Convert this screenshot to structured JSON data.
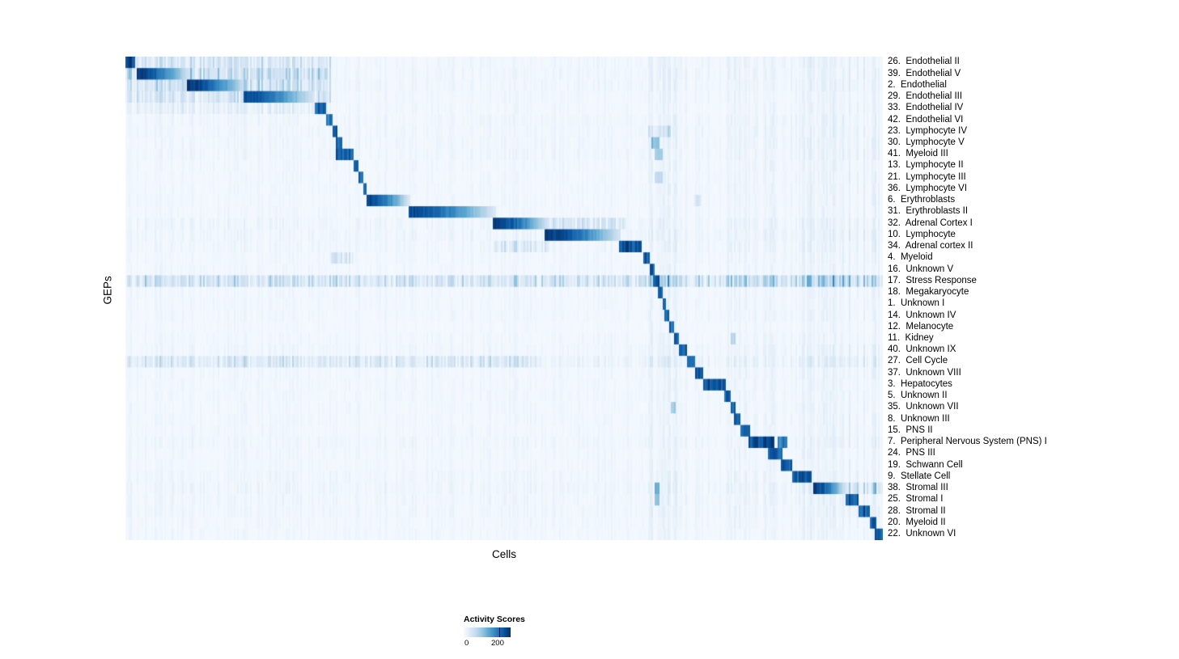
{
  "figure": {
    "xlabel": "Cells",
    "ylabel": "GEPs"
  },
  "chart_data": {
    "type": "heatmap",
    "title": "",
    "xlabel": "Cells",
    "ylabel": "GEPs",
    "legend_position": "bottom",
    "grid": false,
    "colorbar": {
      "label": "Activity Scores",
      "tick_labels": [
        "0",
        "200"
      ],
      "min": 0,
      "max": 250
    },
    "colormap": [
      "#f7fbff",
      "#deebf7",
      "#c6dbef",
      "#9ecae1",
      "#6baed6",
      "#4292c6",
      "#2171b5",
      "#08519c",
      "#08306b"
    ],
    "streak_regions": [
      [
        0.69,
        0.745,
        1.7
      ],
      [
        0.795,
        0.86,
        1.4
      ],
      [
        0.895,
        1.0,
        1.8
      ]
    ],
    "rows": [
      {
        "label": "26.  Endothelial II",
        "blocks": [
          [
            0.0,
            0.012,
            1.0
          ]
        ],
        "diffuse": [
          [
            0.0,
            0.27,
            0.26
          ],
          [
            0.27,
            1.0,
            0.06
          ]
        ]
      },
      {
        "label": "39.  Endothelial V",
        "blocks": [
          [
            0.014,
            0.085,
            0.97
          ]
        ],
        "diffuse": [
          [
            0.0,
            0.27,
            0.36
          ],
          [
            0.27,
            1.0,
            0.06
          ]
        ]
      },
      {
        "label": "2.  Endothelial",
        "blocks": [
          [
            0.08,
            0.16,
            1.0
          ]
        ],
        "diffuse": [
          [
            0.0,
            0.27,
            0.32
          ],
          [
            0.27,
            1.0,
            0.06
          ]
        ]
      },
      {
        "label": "29.  Endothelial III",
        "blocks": [
          [
            0.155,
            0.25,
            0.92
          ]
        ],
        "diffuse": [
          [
            0.0,
            0.27,
            0.26
          ],
          [
            0.27,
            1.0,
            0.05
          ]
        ]
      },
      {
        "label": "33.  Endothelial IV",
        "blocks": [
          [
            0.25,
            0.264,
            0.9
          ]
        ],
        "diffuse": [
          [
            0.0,
            0.27,
            0.13
          ],
          [
            0.27,
            1.0,
            0.05
          ]
        ]
      },
      {
        "label": "42.  Endothelial VI",
        "blocks": [
          [
            0.264,
            0.272,
            0.85
          ]
        ],
        "diffuse": [
          [
            0.0,
            1.0,
            0.06
          ]
        ]
      },
      {
        "label": "23.  Lymphocyte IV",
        "blocks": [
          [
            0.272,
            0.28,
            0.9
          ]
        ],
        "diffuse": [
          [
            0.0,
            1.0,
            0.06
          ],
          [
            0.69,
            0.72,
            0.16
          ]
        ]
      },
      {
        "label": "30.  Lymphocyte V",
        "blocks": [
          [
            0.277,
            0.285,
            0.9
          ],
          [
            0.695,
            0.705,
            0.5
          ]
        ],
        "diffuse": [
          [
            0.0,
            1.0,
            0.06
          ]
        ]
      },
      {
        "label": "41.  Myeloid III",
        "blocks": [
          [
            0.278,
            0.3,
            0.96
          ],
          [
            0.7,
            0.71,
            0.42
          ]
        ],
        "diffuse": [
          [
            0.0,
            1.0,
            0.06
          ]
        ]
      },
      {
        "label": "13.  Lymphocyte II",
        "blocks": [
          [
            0.3,
            0.308,
            0.9
          ]
        ],
        "diffuse": [
          [
            0.0,
            1.0,
            0.05
          ]
        ]
      },
      {
        "label": "21.  Lymphocyte III",
        "blocks": [
          [
            0.307,
            0.314,
            0.86
          ],
          [
            0.7,
            0.71,
            0.3
          ]
        ],
        "diffuse": [
          [
            0.0,
            1.0,
            0.05
          ]
        ]
      },
      {
        "label": "36.  Lymphocyte VI",
        "blocks": [
          [
            0.313,
            0.319,
            0.86
          ]
        ],
        "diffuse": [
          [
            0.0,
            1.0,
            0.05
          ]
        ]
      },
      {
        "label": "6.  Erythroblasts",
        "blocks": [
          [
            0.318,
            0.375,
            0.96
          ]
        ],
        "diffuse": [
          [
            0.0,
            1.0,
            0.05
          ],
          [
            0.75,
            0.762,
            0.2
          ]
        ]
      },
      {
        "label": "31.  Erythroblasts II",
        "blocks": [
          [
            0.374,
            0.49,
            0.92
          ]
        ],
        "diffuse": [
          [
            0.0,
            1.0,
            0.05
          ]
        ]
      },
      {
        "label": "32.  Adrenal Cortex I",
        "blocks": [
          [
            0.485,
            0.56,
            1.0
          ]
        ],
        "diffuse": [
          [
            0.0,
            1.0,
            0.07
          ],
          [
            0.56,
            0.66,
            0.26
          ]
        ]
      },
      {
        "label": "10.  Lymphocyte",
        "blocks": [
          [
            0.553,
            0.655,
            1.0
          ]
        ],
        "diffuse": [
          [
            0.0,
            1.0,
            0.07
          ]
        ]
      },
      {
        "label": "34.  Adrenal cortex II",
        "blocks": [
          [
            0.652,
            0.682,
            1.0
          ]
        ],
        "diffuse": [
          [
            0.0,
            1.0,
            0.06
          ],
          [
            0.485,
            0.56,
            0.2
          ]
        ]
      },
      {
        "label": "4.  Myeloid",
        "blocks": [
          [
            0.685,
            0.693,
            0.96
          ]
        ],
        "diffuse": [
          [
            0.0,
            1.0,
            0.05
          ],
          [
            0.27,
            0.3,
            0.26
          ]
        ]
      },
      {
        "label": "16.  Unknown V",
        "blocks": [
          [
            0.692,
            0.699,
            0.9
          ]
        ],
        "diffuse": [
          [
            0.0,
            1.0,
            0.05
          ]
        ]
      },
      {
        "label": "17.  Stress Response",
        "blocks": [
          [
            0.698,
            0.705,
            1.0
          ]
        ],
        "diffuse": [
          [
            0.0,
            1.0,
            0.3
          ]
        ]
      },
      {
        "label": "18.  Megakaryocyte",
        "blocks": [
          [
            0.704,
            0.71,
            0.9
          ]
        ],
        "diffuse": [
          [
            0.0,
            1.0,
            0.05
          ]
        ]
      },
      {
        "label": "1.  Unknown I",
        "blocks": [
          [
            0.709,
            0.714,
            0.86
          ]
        ],
        "diffuse": [
          [
            0.0,
            1.0,
            0.05
          ]
        ]
      },
      {
        "label": "14.  Unknown IV",
        "blocks": [
          [
            0.713,
            0.719,
            0.9
          ]
        ],
        "diffuse": [
          [
            0.0,
            1.0,
            0.05
          ]
        ]
      },
      {
        "label": "12.  Melanocyte",
        "blocks": [
          [
            0.719,
            0.725,
            0.9
          ]
        ],
        "diffuse": [
          [
            0.0,
            1.0,
            0.04
          ]
        ]
      },
      {
        "label": "11.  Kidney",
        "blocks": [
          [
            0.724,
            0.732,
            0.9
          ],
          [
            0.8,
            0.806,
            0.32
          ]
        ],
        "diffuse": [
          [
            0.0,
            1.0,
            0.05
          ]
        ]
      },
      {
        "label": "40.  Unknown IX",
        "blocks": [
          [
            0.731,
            0.742,
            0.95
          ]
        ],
        "diffuse": [
          [
            0.0,
            1.0,
            0.06
          ]
        ]
      },
      {
        "label": "27.  Cell Cycle",
        "blocks": [
          [
            0.741,
            0.753,
            0.95
          ]
        ],
        "diffuse": [
          [
            0.0,
            0.55,
            0.23
          ],
          [
            0.55,
            1.0,
            0.09
          ]
        ]
      },
      {
        "label": "37.  Unknown VIII",
        "blocks": [
          [
            0.752,
            0.764,
            0.9
          ]
        ],
        "diffuse": [
          [
            0.0,
            1.0,
            0.05
          ]
        ]
      },
      {
        "label": "3.  Hepatocytes",
        "blocks": [
          [
            0.763,
            0.793,
            1.0
          ]
        ],
        "diffuse": [
          [
            0.0,
            1.0,
            0.05
          ]
        ]
      },
      {
        "label": "5.  Unknown II",
        "blocks": [
          [
            0.792,
            0.8,
            0.9
          ]
        ],
        "diffuse": [
          [
            0.0,
            1.0,
            0.05
          ]
        ]
      },
      {
        "label": "35.  Unknown VII",
        "blocks": [
          [
            0.799,
            0.806,
            0.9
          ],
          [
            0.72,
            0.726,
            0.4
          ]
        ],
        "diffuse": [
          [
            0.0,
            1.0,
            0.05
          ]
        ]
      },
      {
        "label": "8.  Unknown III",
        "blocks": [
          [
            0.805,
            0.813,
            0.86
          ]
        ],
        "diffuse": [
          [
            0.0,
            1.0,
            0.05
          ]
        ]
      },
      {
        "label": "15.  PNS II",
        "blocks": [
          [
            0.813,
            0.825,
            0.9
          ]
        ],
        "diffuse": [
          [
            0.0,
            1.0,
            0.05
          ]
        ]
      },
      {
        "label": "7.  Peripheral Nervous System (PNS) I",
        "blocks": [
          [
            0.824,
            0.858,
            1.0
          ],
          [
            0.862,
            0.875,
            0.8
          ]
        ],
        "diffuse": [
          [
            0.0,
            1.0,
            0.06
          ]
        ]
      },
      {
        "label": "24.  PNS III",
        "blocks": [
          [
            0.85,
            0.868,
            0.92
          ]
        ],
        "diffuse": [
          [
            0.0,
            1.0,
            0.05
          ]
        ]
      },
      {
        "label": "19.  Schwann Cell",
        "blocks": [
          [
            0.866,
            0.882,
            0.95
          ]
        ],
        "diffuse": [
          [
            0.0,
            1.0,
            0.05
          ]
        ]
      },
      {
        "label": "9.  Stellate Cell",
        "blocks": [
          [
            0.882,
            0.906,
            0.95
          ]
        ],
        "diffuse": [
          [
            0.0,
            1.0,
            0.06
          ]
        ]
      },
      {
        "label": "38.  Stromal III",
        "blocks": [
          [
            0.91,
            0.953,
            0.96
          ],
          [
            0.7,
            0.706,
            0.6
          ]
        ],
        "diffuse": [
          [
            0.0,
            1.0,
            0.07
          ],
          [
            0.953,
            1.0,
            0.22
          ]
        ]
      },
      {
        "label": "25.  Stromal I",
        "blocks": [
          [
            0.952,
            0.969,
            0.95
          ],
          [
            0.7,
            0.706,
            0.5
          ]
        ],
        "diffuse": [
          [
            0.0,
            1.0,
            0.06
          ]
        ]
      },
      {
        "label": "28.  Stromal II",
        "blocks": [
          [
            0.968,
            0.985,
            0.95
          ]
        ],
        "diffuse": [
          [
            0.0,
            1.0,
            0.06
          ]
        ]
      },
      {
        "label": "20.  Myeloid II",
        "blocks": [
          [
            0.984,
            0.992,
            0.9
          ]
        ],
        "diffuse": [
          [
            0.0,
            1.0,
            0.05
          ]
        ]
      },
      {
        "label": "22.  Unknown VI",
        "blocks": [
          [
            0.991,
            1.0,
            0.96
          ]
        ],
        "diffuse": [
          [
            0.0,
            1.0,
            0.05
          ]
        ]
      }
    ]
  }
}
